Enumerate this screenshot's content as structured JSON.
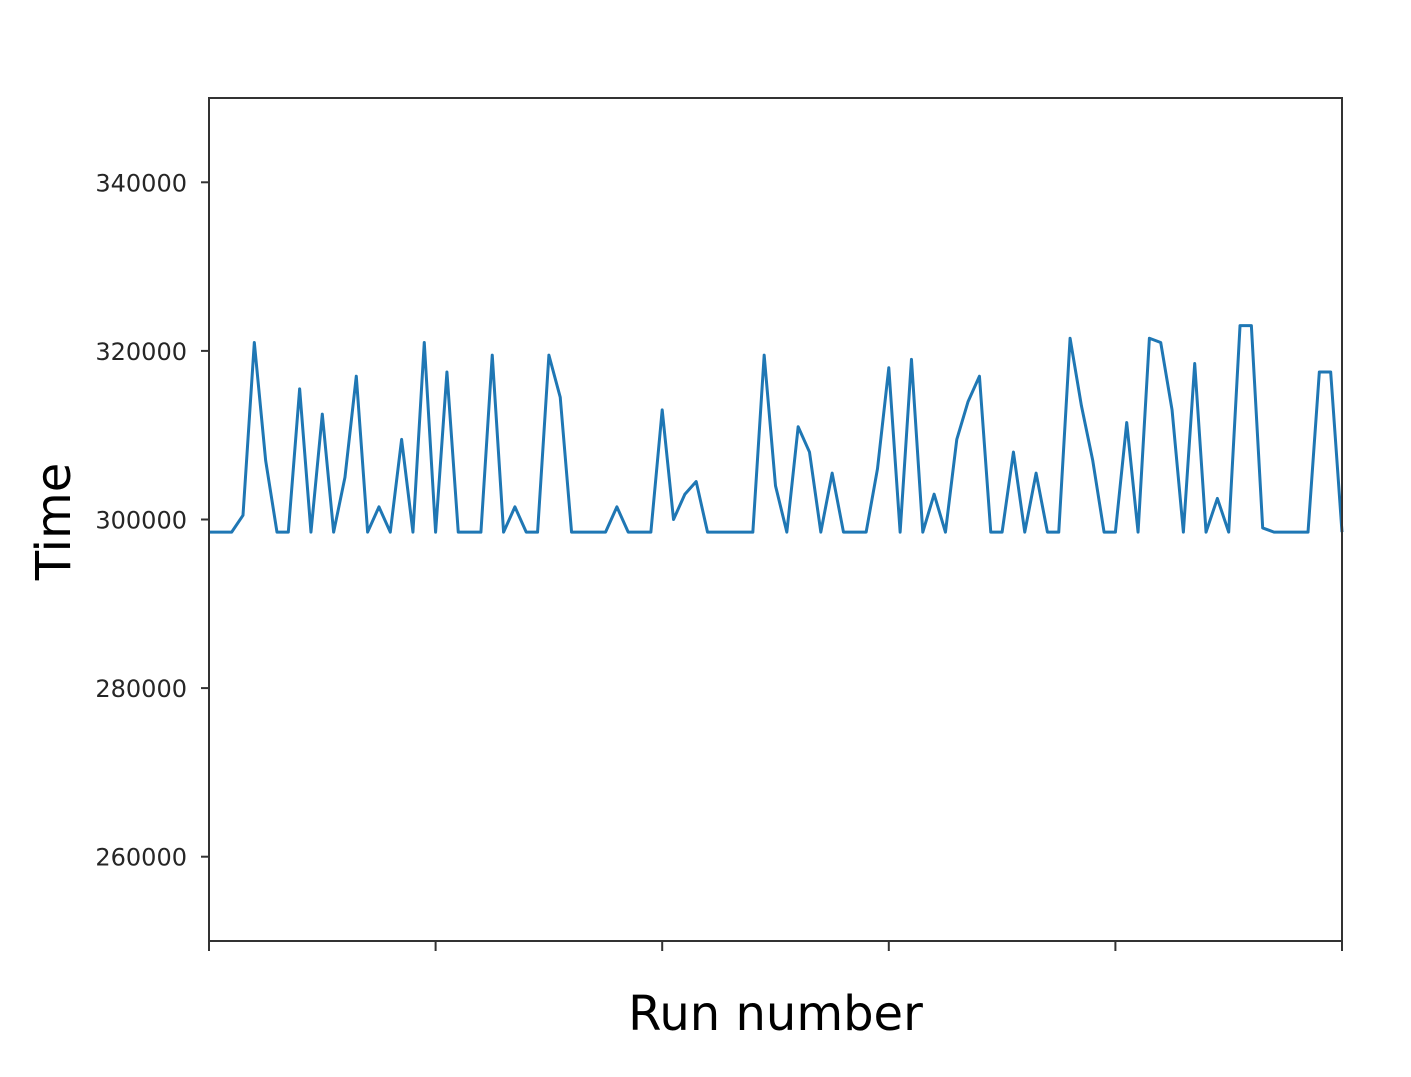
{
  "chart_data": {
    "type": "line",
    "title": "",
    "xlabel": "Run number",
    "ylabel": "Time",
    "xlim": [
      0,
      100
    ],
    "ylim": [
      250000,
      350000
    ],
    "yticks": [
      260000,
      280000,
      300000,
      320000,
      340000
    ],
    "xticks": [
      0,
      20,
      40,
      60,
      80,
      100
    ],
    "xtick_labels_shown": false,
    "grid": false,
    "legend": "none",
    "series": [
      {
        "color": "#1f77b4",
        "x": [
          0,
          1,
          2,
          3,
          4,
          5,
          6,
          7,
          8,
          9,
          10,
          11,
          12,
          13,
          14,
          15,
          16,
          17,
          18,
          19,
          20,
          21,
          22,
          23,
          24,
          25,
          26,
          27,
          28,
          29,
          30,
          31,
          32,
          33,
          34,
          35,
          36,
          37,
          38,
          39,
          40,
          41,
          42,
          43,
          44,
          45,
          46,
          47,
          48,
          49,
          50,
          51,
          52,
          53,
          54,
          55,
          56,
          57,
          58,
          59,
          60,
          61,
          62,
          63,
          64,
          65,
          66,
          67,
          68,
          69,
          70,
          71,
          72,
          73,
          74,
          75,
          76,
          77,
          78,
          79,
          80,
          81,
          82,
          83,
          84,
          85,
          86,
          87,
          88,
          89,
          90,
          91,
          92,
          93,
          94,
          95,
          96,
          97,
          98,
          99,
          100
        ],
        "values": [
          298500,
          298500,
          298500,
          300500,
          321000,
          307000,
          298500,
          298500,
          315500,
          298500,
          312500,
          298500,
          305000,
          317000,
          298500,
          301500,
          298500,
          309500,
          298500,
          321000,
          298500,
          317500,
          298500,
          298500,
          298500,
          319500,
          298500,
          301500,
          298500,
          298500,
          319500,
          314500,
          298500,
          298500,
          298500,
          298500,
          301500,
          298500,
          298500,
          298500,
          313000,
          300000,
          303000,
          304500,
          298500,
          298500,
          298500,
          298500,
          298500,
          319500,
          304000,
          298500,
          311000,
          308000,
          298500,
          305500,
          298500,
          298500,
          298500,
          306000,
          318000,
          298500,
          319000,
          298500,
          303000,
          298500,
          309500,
          314000,
          317000,
          298500,
          298500,
          308000,
          298500,
          305500,
          298500,
          298500,
          321500,
          313500,
          307000,
          298500,
          298500,
          311500,
          298500,
          321500,
          321000,
          313000,
          298500,
          318500,
          298500,
          302500,
          298500,
          323000,
          323000,
          299000,
          298500,
          298500,
          298500,
          298500,
          317500,
          317500,
          298500
        ]
      }
    ]
  }
}
